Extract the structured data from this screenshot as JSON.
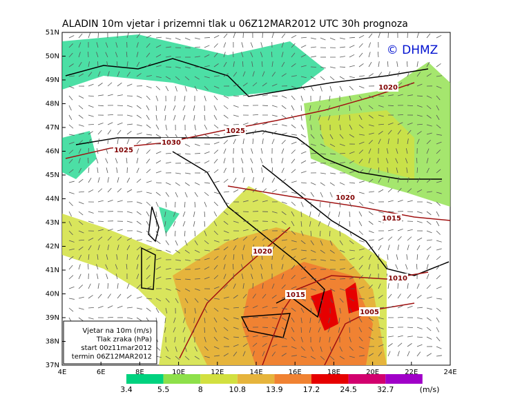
{
  "header": {
    "title": "ALADIN 10m vjetar i prizemni tlak u 06Z12MAR2012 UTC 30h prognoza"
  },
  "logo": "© DHMZ",
  "axes": {
    "lat_labels": [
      "51N",
      "50N",
      "49N",
      "48N",
      "47N",
      "46N",
      "45N",
      "44N",
      "43N",
      "42N",
      "41N",
      "40N",
      "39N",
      "38N",
      "37N"
    ],
    "lon_labels": [
      "4E",
      "6E",
      "8E",
      "10E",
      "12E",
      "14E",
      "16E",
      "18E",
      "20E",
      "22E",
      "24E"
    ]
  },
  "isobars": [
    "1020",
    "1025",
    "1030",
    "1025",
    "1020",
    "1015",
    "1020",
    "1010",
    "1015",
    "1005"
  ],
  "info_box": [
    "Vjetar na 10m (m/s)",
    "Tlak zraka (hPa)",
    "start 00z11mar2012",
    "termin 06Z12MAR2012"
  ],
  "colorbar": {
    "levels": [
      3.4,
      5.5,
      8,
      10.8,
      13.9,
      17.2,
      24.5,
      32.7
    ],
    "unit": "(m/s)",
    "colors": [
      "#00d27f",
      "#8ee04a",
      "#d2e040",
      "#e6b43c",
      "#f08232",
      "#e60000",
      "#d2006e",
      "#a000c8"
    ]
  }
}
